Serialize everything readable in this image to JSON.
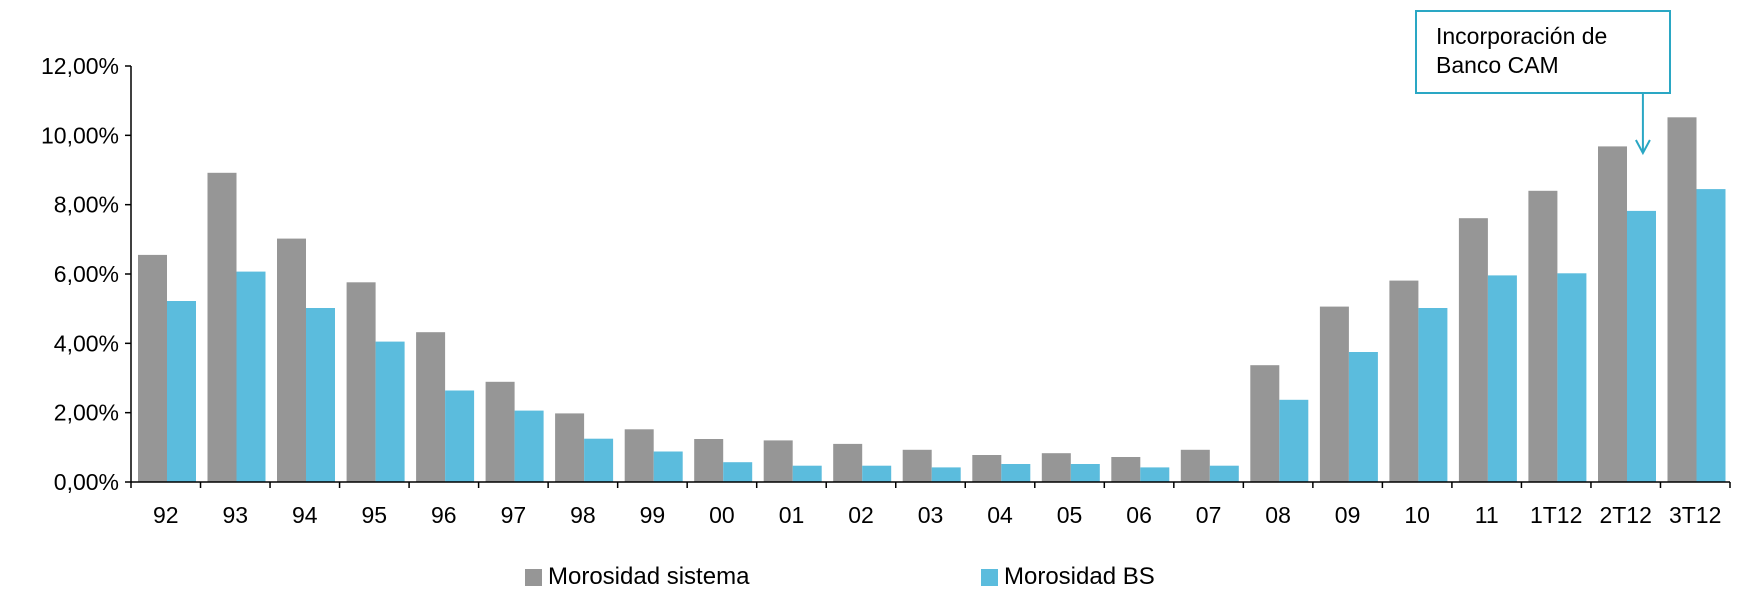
{
  "chart_data": {
    "type": "bar",
    "categories": [
      "92",
      "93",
      "94",
      "95",
      "96",
      "97",
      "98",
      "99",
      "00",
      "01",
      "02",
      "03",
      "04",
      "05",
      "06",
      "07",
      "08",
      "09",
      "10",
      "11",
      "1T12",
      "2T12",
      "3T12"
    ],
    "series": [
      {
        "name": "Morosidad sistema",
        "color": "#969696",
        "values": [
          6.55,
          8.92,
          7.02,
          5.76,
          4.32,
          2.89,
          1.98,
          1.52,
          1.24,
          1.2,
          1.1,
          0.93,
          0.78,
          0.83,
          0.72,
          0.93,
          3.37,
          5.06,
          5.81,
          7.61,
          8.4,
          9.68,
          10.52
        ]
      },
      {
        "name": "Morosidad BS",
        "color": "#5bbcdd",
        "values": [
          5.22,
          6.07,
          5.02,
          4.05,
          2.64,
          2.06,
          1.25,
          0.88,
          0.57,
          0.47,
          0.47,
          0.42,
          0.52,
          0.52,
          0.42,
          0.47,
          2.37,
          3.75,
          5.02,
          5.96,
          6.02,
          7.82,
          8.45
        ]
      }
    ],
    "y_ticks": [
      "0,00%",
      "2,00%",
      "4,00%",
      "6,00%",
      "8,00%",
      "10,00%",
      "12,00%"
    ],
    "ylim": [
      0,
      12
    ],
    "grid": false,
    "legend_position": "bottom",
    "annotation": {
      "lines": [
        "Incorporación de",
        "Banco CAM"
      ],
      "target_category": "2T12",
      "border_color": "#2aa7c4"
    }
  }
}
